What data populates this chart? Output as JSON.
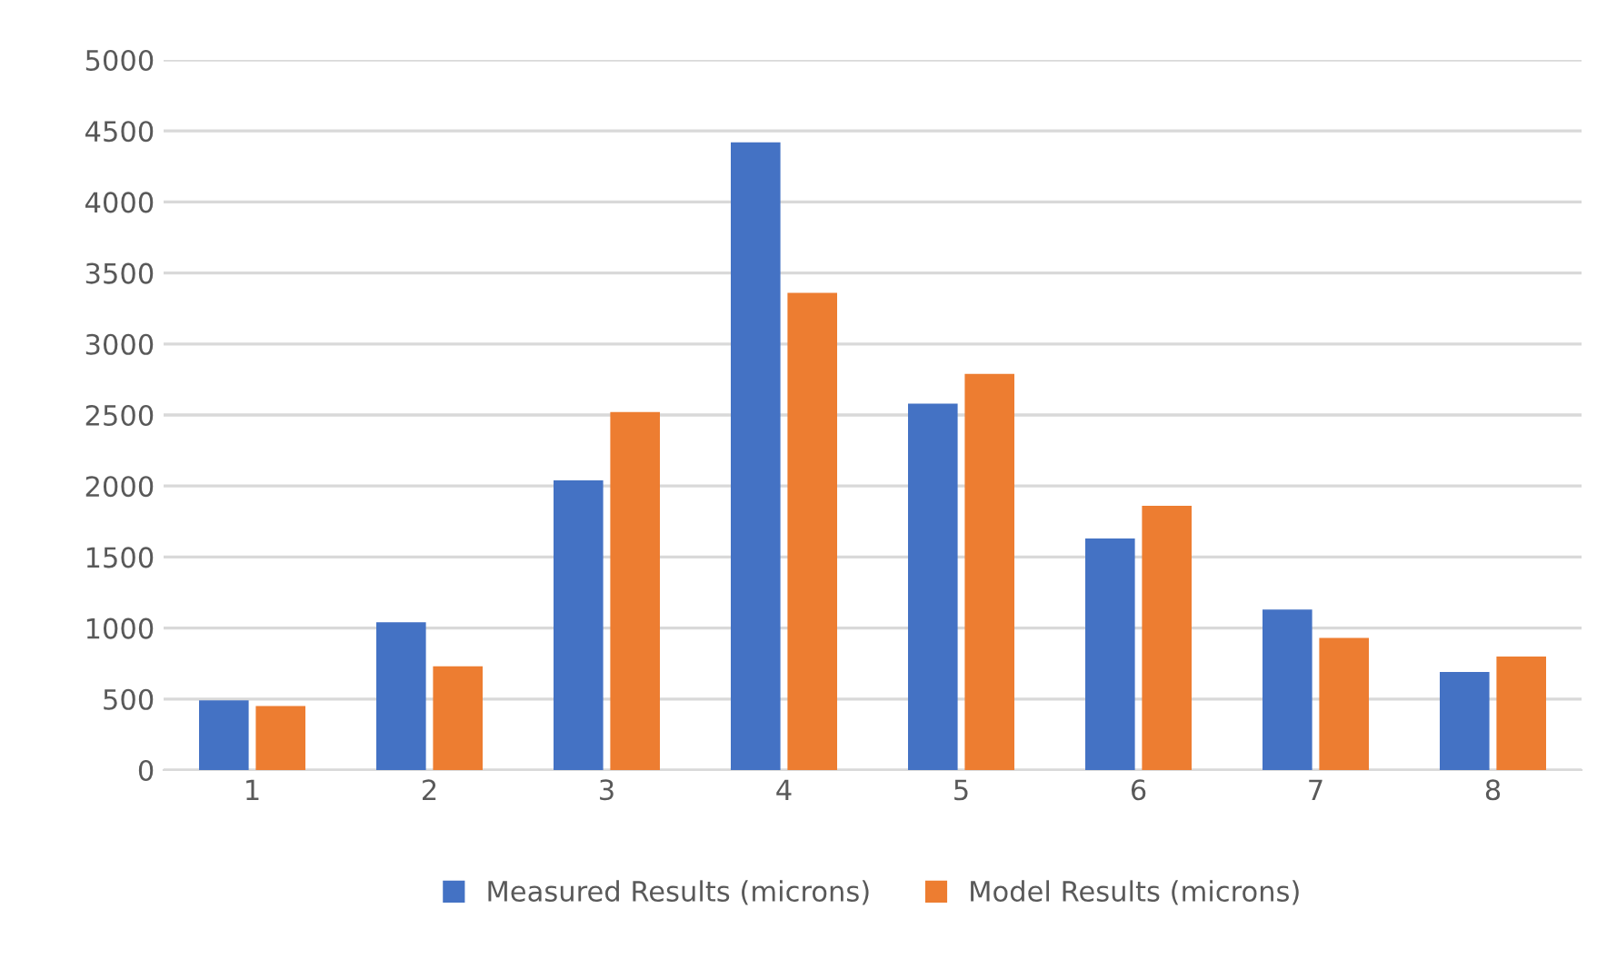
{
  "chart_data": {
    "type": "bar",
    "categories": [
      "1",
      "2",
      "3",
      "4",
      "5",
      "6",
      "7",
      "8"
    ],
    "series": [
      {
        "name": "Measured Results (microns)",
        "color": "#4472c4",
        "values": [
          490,
          1040,
          2040,
          4420,
          2580,
          1630,
          1130,
          690
        ]
      },
      {
        "name": "Model Results (microns)",
        "color": "#ed7d31",
        "values": [
          450,
          730,
          2520,
          3360,
          2790,
          1860,
          930,
          800
        ]
      }
    ],
    "ylim": [
      0,
      5000
    ],
    "yticks": [
      0,
      500,
      1000,
      1500,
      2000,
      2500,
      3000,
      3500,
      4000,
      4500,
      5000
    ],
    "grid": "y",
    "legend": "bottom"
  }
}
